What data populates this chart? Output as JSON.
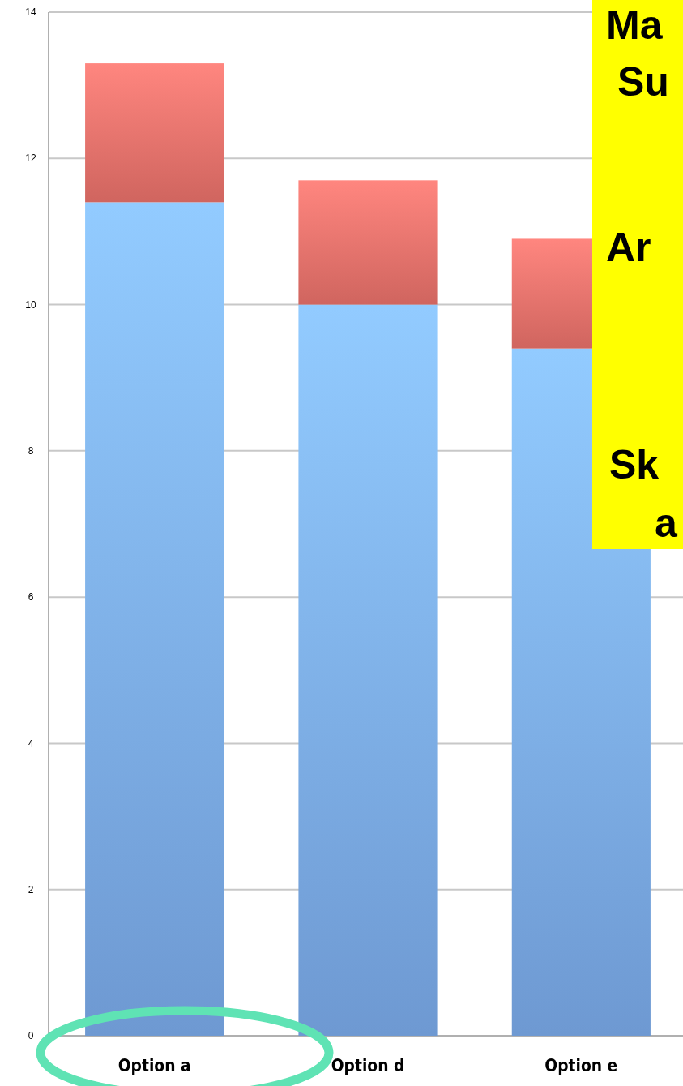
{
  "chart_data": {
    "type": "bar",
    "stacked": true,
    "categories": [
      "Option a",
      "Option d",
      "Option e"
    ],
    "series": [
      {
        "color": "#7aaaea",
        "values": [
          11.4,
          10.0,
          9.4
        ]
      },
      {
        "color": "#e8706a",
        "values": [
          1.9,
          1.7,
          1.5
        ]
      }
    ],
    "ylim": [
      0,
      14
    ],
    "yticks": [
      0,
      2,
      4,
      6,
      8,
      10,
      12,
      14
    ],
    "grid": "y",
    "annotations": [
      "Ma",
      "Su",
      "Ar",
      "Sk",
      "a"
    ]
  }
}
